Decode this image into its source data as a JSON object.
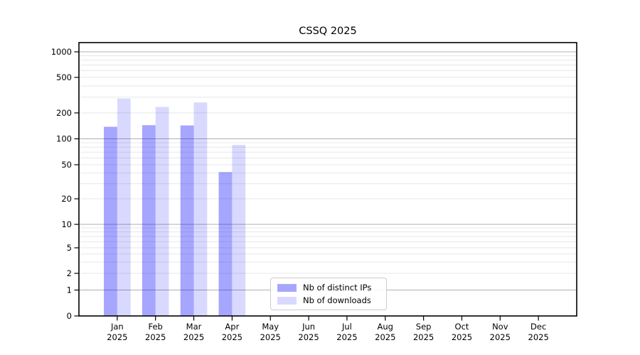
{
  "chart_data": {
    "type": "bar",
    "title": "CSSQ 2025",
    "categories": [
      "Jan 2025",
      "Feb 2025",
      "Mar 2025",
      "Apr 2025",
      "May 2025",
      "Jun 2025",
      "Jul 2025",
      "Aug 2025",
      "Sep 2025",
      "Oct 2025",
      "Nov 2025",
      "Dec 2025"
    ],
    "series": [
      {
        "name": "Nb of distinct IPs",
        "values": [
          138,
          144,
          143,
          41,
          0,
          0,
          0,
          0,
          0,
          0,
          0,
          0
        ]
      },
      {
        "name": "Nb of downloads",
        "values": [
          290,
          233,
          262,
          85,
          0,
          0,
          0,
          0,
          0,
          0,
          0,
          0
        ]
      }
    ],
    "yticks": [
      0,
      1,
      2,
      5,
      10,
      20,
      50,
      100,
      200,
      500,
      1000
    ],
    "yscale": "symlog-like",
    "ylim": [
      0,
      1200
    ],
    "grid": "both",
    "legend_position": "inside-bottom-center-left"
  },
  "colors": {
    "bar_base": "#0000ff",
    "ips_alpha": 0.35,
    "downloads_alpha": 0.15,
    "ips_composited": "#a6a6ff",
    "downloads_composited": "#d9d9ff",
    "grid_major": "#b0b0b0",
    "grid_minor": "#e7e7e7",
    "axis": "#000000",
    "legend_border": "#cccccc"
  }
}
